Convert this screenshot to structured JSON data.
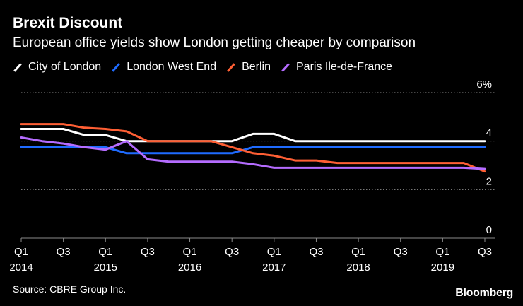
{
  "header": {
    "title": "Brexit Discount",
    "subtitle": "European office yields show London getting cheaper by comparison"
  },
  "legend": {
    "items": [
      {
        "label": "City of London",
        "color": "#ffffff"
      },
      {
        "label": "London West End",
        "color": "#1f6bff"
      },
      {
        "label": "Berlin",
        "color": "#ff5f34"
      },
      {
        "label": "Paris Ile-de-France",
        "color": "#b56cff"
      }
    ]
  },
  "footer": {
    "source": "Source: CBRE Group Inc.",
    "brand": "Bloomberg"
  },
  "chart_data": {
    "type": "line",
    "title": "Brexit Discount",
    "subtitle": "European office yields show London getting cheaper by comparison",
    "xlabel": "",
    "ylabel": "",
    "x": [
      "Q1 2014",
      "Q2 2014",
      "Q3 2014",
      "Q4 2014",
      "Q1 2015",
      "Q2 2015",
      "Q3 2015",
      "Q4 2015",
      "Q1 2016",
      "Q2 2016",
      "Q3 2016",
      "Q4 2016",
      "Q1 2017",
      "Q2 2017",
      "Q3 2017",
      "Q4 2017",
      "Q1 2018",
      "Q2 2018",
      "Q3 2018",
      "Q4 2018",
      "Q1 2019",
      "Q2 2019",
      "Q3 2019"
    ],
    "ylim": [
      0,
      6
    ],
    "yticks": [
      0,
      2,
      4,
      6
    ],
    "ytick_labels": [
      "0",
      "2",
      "4",
      "6%"
    ],
    "xticks": [
      {
        "index": 0,
        "quarter": "Q1",
        "year": "2014"
      },
      {
        "index": 2,
        "quarter": "Q3",
        "year": ""
      },
      {
        "index": 4,
        "quarter": "Q1",
        "year": "2015"
      },
      {
        "index": 6,
        "quarter": "Q3",
        "year": ""
      },
      {
        "index": 8,
        "quarter": "Q1",
        "year": "2016"
      },
      {
        "index": 10,
        "quarter": "Q3",
        "year": ""
      },
      {
        "index": 12,
        "quarter": "Q1",
        "year": "2017"
      },
      {
        "index": 14,
        "quarter": "Q3",
        "year": ""
      },
      {
        "index": 16,
        "quarter": "Q1",
        "year": "2018"
      },
      {
        "index": 18,
        "quarter": "Q3",
        "year": ""
      },
      {
        "index": 20,
        "quarter": "Q1",
        "year": "2019"
      },
      {
        "index": 22,
        "quarter": "Q3",
        "year": ""
      }
    ],
    "grid": "horizontal dotted",
    "series": [
      {
        "name": "City of London",
        "color": "#ffffff",
        "values": [
          4.5,
          4.5,
          4.5,
          4.25,
          4.25,
          4.0,
          4.0,
          4.0,
          4.0,
          4.0,
          4.0,
          4.3,
          4.3,
          4.0,
          4.0,
          4.0,
          4.0,
          4.0,
          4.0,
          4.0,
          4.0,
          4.0,
          4.0
        ]
      },
      {
        "name": "London West End",
        "color": "#1f6bff",
        "values": [
          3.75,
          3.75,
          3.75,
          3.75,
          3.75,
          3.5,
          3.5,
          3.5,
          3.5,
          3.5,
          3.5,
          3.75,
          3.75,
          3.75,
          3.75,
          3.75,
          3.75,
          3.75,
          3.75,
          3.75,
          3.75,
          3.75,
          3.75
        ]
      },
      {
        "name": "Berlin",
        "color": "#ff5f34",
        "values": [
          4.7,
          4.7,
          4.7,
          4.55,
          4.5,
          4.4,
          4.0,
          4.0,
          4.0,
          4.0,
          3.75,
          3.5,
          3.4,
          3.2,
          3.2,
          3.1,
          3.1,
          3.1,
          3.1,
          3.1,
          3.1,
          3.1,
          2.75
        ]
      },
      {
        "name": "Paris Ile-de-France",
        "color": "#b56cff",
        "values": [
          4.15,
          4.0,
          3.9,
          3.75,
          3.65,
          4.0,
          3.25,
          3.15,
          3.15,
          3.15,
          3.15,
          3.05,
          2.9,
          2.9,
          2.9,
          2.9,
          2.9,
          2.9,
          2.9,
          2.9,
          2.9,
          2.9,
          2.85
        ]
      }
    ]
  }
}
